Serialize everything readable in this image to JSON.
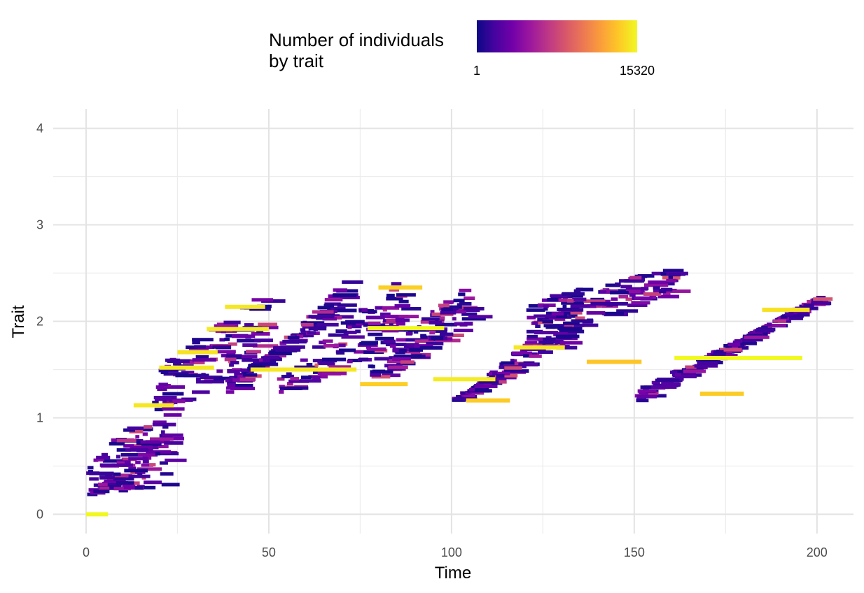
{
  "chart_data": {
    "type": "heatmap",
    "title": "",
    "xlabel": "Time",
    "ylabel": "Trait",
    "xlim": [
      -9,
      210
    ],
    "ylim": [
      -0.2,
      4.2
    ],
    "x_ticks": [
      "0",
      "50",
      "100",
      "150",
      "200"
    ],
    "x_tick_values": [
      0,
      50,
      100,
      150,
      200
    ],
    "y_ticks": [
      "0",
      "1",
      "2",
      "3",
      "4"
    ],
    "y_tick_values": [
      0,
      1,
      2,
      3,
      4
    ],
    "grid": true,
    "legend": {
      "title_lines": [
        "Number of individuals",
        "by trait"
      ],
      "min_label": "1",
      "max_label": "15320",
      "min": 1,
      "max": 15320,
      "colormap": "plasma",
      "placement": "top"
    },
    "colors": [
      "#0d0887",
      "#46039f",
      "#7201a8",
      "#9c179e",
      "#bd3786",
      "#d8576b",
      "#ed7953",
      "#fb9f3a",
      "#fdca26",
      "#f0f921"
    ],
    "clusters": [
      {
        "x": [
          0,
          22
        ],
        "y_start": [
          0.12,
          0.55
        ],
        "y_end": [
          0.2,
          1.55
        ],
        "spread": [
          0.18,
          0.3
        ],
        "density": 120
      },
      {
        "x": [
          18,
          48
        ],
        "y_start": [
          1.0,
          1.55
        ],
        "y_end": [
          1.65,
          2.3
        ],
        "spread": [
          0.35,
          0.4
        ],
        "density": 110
      },
      {
        "x": [
          38,
          70
        ],
        "y_start": [
          1.45,
          1.2
        ],
        "y_end": [
          2.1,
          2.4
        ],
        "spread": [
          0.45,
          0.5
        ],
        "density": 110
      },
      {
        "x": [
          52,
          87
        ],
        "y_start": [
          1.25,
          1.4
        ],
        "y_end": [
          1.8,
          2.55
        ],
        "spread": [
          0.45,
          0.4
        ],
        "density": 110
      },
      {
        "x": [
          77,
          105
        ],
        "y_start": [
          1.35,
          1.55
        ],
        "y_end": [
          2.0,
          2.45
        ],
        "spread": [
          0.35,
          0.35
        ],
        "density": 100
      },
      {
        "x": [
          100,
          130
        ],
        "y_start": [
          1.25,
          1.1
        ],
        "y_end": [
          1.75,
          2.1
        ],
        "spread": [
          0.45,
          0.45
        ],
        "density": 110
      },
      {
        "x": [
          120,
          160
        ],
        "y_start": [
          1.8,
          2.2
        ],
        "y_end": [
          2.3,
          2.55
        ],
        "spread": [
          0.45,
          0.35
        ],
        "density": 130
      },
      {
        "x": [
          150,
          200
        ],
        "y_start": [
          1.2,
          1.25
        ],
        "y_end": [
          2.3,
          2.2
        ],
        "spread": [
          0.7,
          0.7
        ],
        "density": 160
      }
    ],
    "highlight_segments": [
      {
        "x0": 0,
        "x1": 6,
        "y": 0.0,
        "value": 14500
      },
      {
        "x0": 13,
        "x1": 24,
        "y": 1.13,
        "value": 10500
      },
      {
        "x0": 20,
        "x1": 35,
        "y": 1.52,
        "value": 10800
      },
      {
        "x0": 25,
        "x1": 36,
        "y": 1.68,
        "value": 9000
      },
      {
        "x0": 38,
        "x1": 49,
        "y": 2.15,
        "value": 10300
      },
      {
        "x0": 33,
        "x1": 50,
        "y": 1.92,
        "value": 11200
      },
      {
        "x0": 45,
        "x1": 74,
        "y": 1.5,
        "value": 10300
      },
      {
        "x0": 77,
        "x1": 98,
        "y": 1.93,
        "value": 15320
      },
      {
        "x0": 80,
        "x1": 92,
        "y": 2.35,
        "value": 6000
      },
      {
        "x0": 75,
        "x1": 88,
        "y": 1.35,
        "value": 5800
      },
      {
        "x0": 95,
        "x1": 112,
        "y": 1.4,
        "value": 11300
      },
      {
        "x0": 104,
        "x1": 116,
        "y": 1.18,
        "value": 5400
      },
      {
        "x0": 117,
        "x1": 131,
        "y": 1.73,
        "value": 10400
      },
      {
        "x0": 137,
        "x1": 152,
        "y": 1.58,
        "value": 4800
      },
      {
        "x0": 161,
        "x1": 196,
        "y": 1.62,
        "value": 15320
      },
      {
        "x0": 168,
        "x1": 180,
        "y": 1.25,
        "value": 5500
      },
      {
        "x0": 185,
        "x1": 198,
        "y": 2.12,
        "value": 8800
      }
    ]
  }
}
